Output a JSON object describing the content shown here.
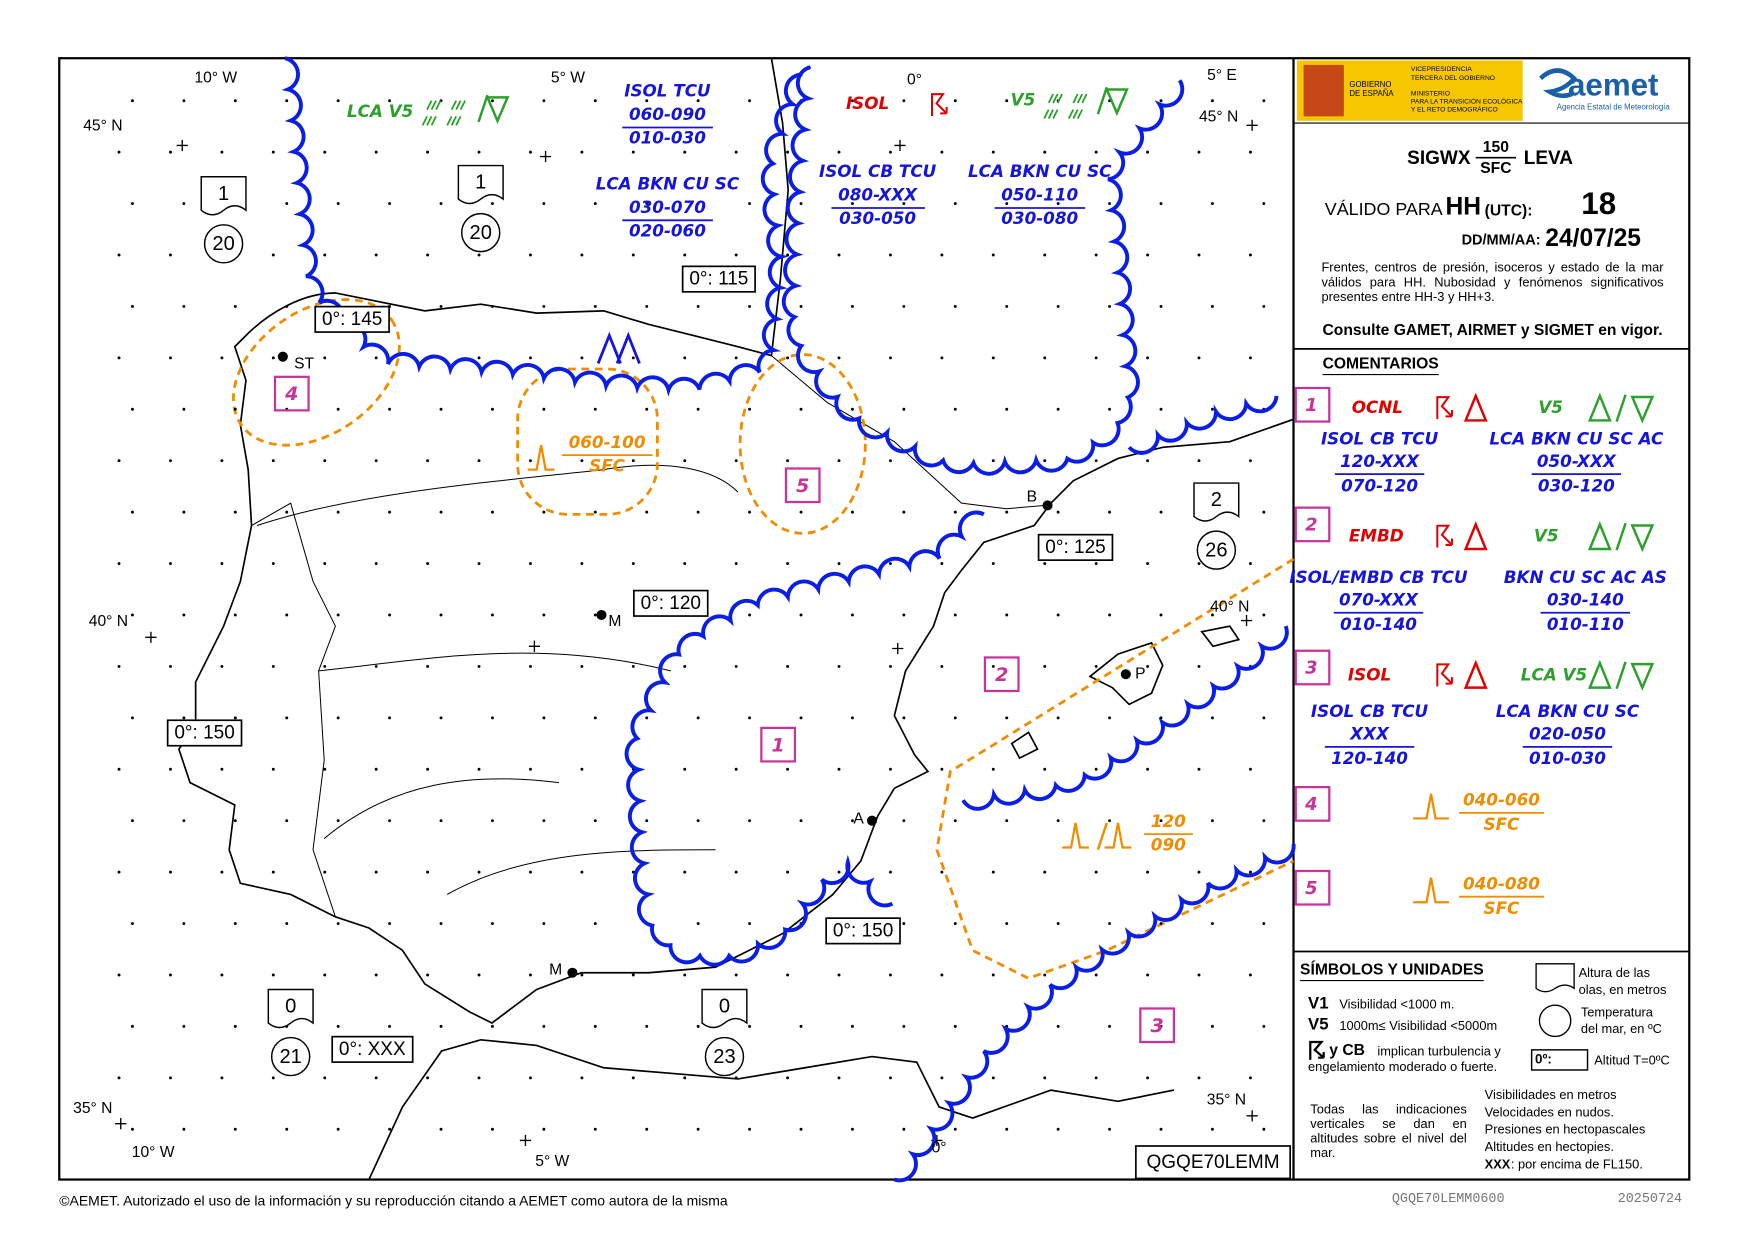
{
  "logos": {
    "gov_lines": [
      "GOBIERNO",
      "DE ESPAÑA"
    ],
    "vice_lines": [
      "VICEPRESIDENCIA",
      "TERCERA DEL GOBIERNO"
    ],
    "min_lines": [
      "MINISTERIO",
      "PARA LA TRANSICIÓN ECOLÓGICA",
      "Y EL RETO DEMOGRÁFICO"
    ],
    "aemet": "aemet",
    "agency": "Agencia Estatal de Meteorología"
  },
  "chart_info": {
    "product": "SIGWX",
    "upper": "150",
    "lower": "SFC",
    "region": "LEVA",
    "valid_label": "VÁLIDO PARA",
    "hh": "HH",
    "utc": "(UTC):",
    "hour": "18",
    "date_label": "DD/MM/AA:",
    "date": "24/07/25",
    "description": "Frentes, centros de presión, isoceros y estado de la mar válidos para HH. Nubosidad y fenómenos significativos presentes entre HH-3 y HH+3.",
    "consult": "Consulte GAMET, AIRMET y SIGMET en vigor."
  },
  "map": {
    "graticule": [
      "10° W",
      "5° W",
      "0°",
      "5° E",
      "45° N",
      "45° N",
      "40° N",
      "40° N",
      "35° N",
      "35° N",
      "10° W",
      "5° W",
      "0°"
    ],
    "cities": [
      "ST",
      "M",
      "B",
      "P",
      "A",
      "M"
    ],
    "freezing_levels": [
      "0°: 115",
      "0°: 145",
      "0°: 125",
      "0°: 120",
      "0°: 150",
      "0°: 150",
      "0°: XXX"
    ],
    "sea_state": [
      {
        "wave": "1",
        "temp": "20"
      },
      {
        "wave": "1",
        "temp": "20"
      },
      {
        "wave": "2",
        "temp": "26"
      },
      {
        "wave": "0",
        "temp": "21"
      },
      {
        "wave": "0",
        "temp": "23"
      }
    ],
    "areas": [
      "4",
      "5",
      "1",
      "2",
      "3"
    ],
    "clouds": [
      {
        "color": "#2ca02c",
        "lines": [
          "LCA  V5"
        ]
      },
      {
        "color": "#1414dc",
        "lines": [
          "ISOL TCU",
          "060-090",
          "010-030"
        ]
      },
      {
        "color": "#1414dc",
        "lines": [
          "LCA BKN CU SC",
          "030-070",
          "020-060"
        ]
      },
      {
        "color": "#e00000",
        "lines": [
          "ISOL"
        ]
      },
      {
        "color": "#2ca02c",
        "lines": [
          "V5"
        ]
      },
      {
        "color": "#1414dc",
        "lines": [
          "ISOL CB TCU",
          "080-XXX",
          "030-050"
        ]
      },
      {
        "color": "#1414dc",
        "lines": [
          "LCA BKN CU SC",
          "050-110",
          "030-080"
        ]
      },
      {
        "color": "#f08c00",
        "lines": [
          "060-100",
          "SFC"
        ]
      },
      {
        "color": "#f08c00",
        "lines": [
          "120",
          "090"
        ]
      }
    ],
    "code": "QGQE70LEMM"
  },
  "comments": {
    "title": "COMENTARIOS",
    "items": [
      {
        "id": "1",
        "head_left": "OCNL",
        "head_right": "V5",
        "left": [
          "ISOL CB TCU",
          "120-XXX",
          "070-120"
        ],
        "right": [
          "LCA BKN CU SC AC",
          "050-XXX",
          "030-120"
        ]
      },
      {
        "id": "2",
        "head_left": "EMBD",
        "head_right": "V5",
        "left": [
          "ISOL/EMBD CB TCU",
          "070-XXX",
          "010-140"
        ],
        "right": [
          "BKN CU SC AC AS",
          "030-140",
          "010-110"
        ]
      },
      {
        "id": "3",
        "head_left": "ISOL",
        "head_right": "LCA  V5",
        "left": [
          "ISOL CB TCU",
          "XXX",
          "120-140"
        ],
        "right": [
          "LCA BKN CU SC",
          "020-050",
          "010-030"
        ]
      },
      {
        "id": "4",
        "values": [
          "040-060",
          "SFC"
        ]
      },
      {
        "id": "5",
        "values": [
          "040-080",
          "SFC"
        ]
      }
    ]
  },
  "legend": {
    "title": "SÍMBOLOS Y UNIDADES",
    "waves": [
      "Altura de las",
      "olas, en metros"
    ],
    "temp": [
      "Temperatura",
      "del mar, en ºC"
    ],
    "v1": "V1",
    "v1_text": "Visibilidad <1000 m.",
    "v5": "V5",
    "v5_text": "1000m≤ Visibilidad <5000m",
    "cb": "y CB",
    "cb_text": [
      "implican turbulencia y",
      "engelamiento moderado o fuerte."
    ],
    "fz": "0º:",
    "fz_text": "Altitud T=0ºC",
    "vertical": "Todas las indicaciones verticales se dan en altitudes sobre el nivel del mar.",
    "units": [
      "Visibilidades en metros",
      "Velocidades en nudos.",
      "Presiones en hectopascales",
      "Altitudes en hectopies."
    ],
    "xxx": "XXX",
    "xxx_text": ": por encima de FL150."
  },
  "footer": {
    "copyright": "©AEMET. Autorizado el uso de la información y su reproducción citando a AEMET como autora de la misma",
    "file": "QGQE70LEMM0600",
    "date": "20250724"
  }
}
